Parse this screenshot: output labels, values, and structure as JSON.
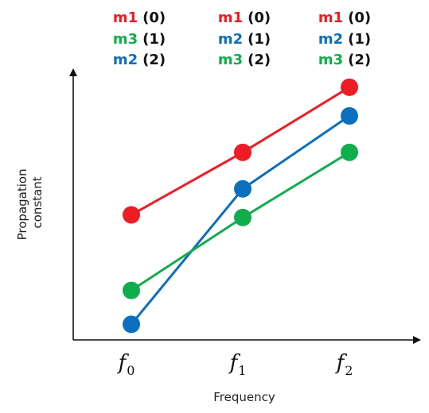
{
  "colors": {
    "m1": "#ee1c24",
    "m2": "#0b6fbd",
    "m3": "#10ad4c",
    "axis": "#111111"
  },
  "chart_data": {
    "type": "line",
    "xlabel": "Frequency",
    "ylabel_lines": [
      "Propagation",
      "constant"
    ],
    "categories": [
      {
        "base": "f",
        "sub": "0"
      },
      {
        "base": "f",
        "sub": "1"
      },
      {
        "base": "f",
        "sub": "2"
      }
    ],
    "ylim": [
      0,
      100
    ],
    "grid": false,
    "series": [
      {
        "name": "m1",
        "key": "m1",
        "values": [
          48,
          72,
          97
        ]
      },
      {
        "name": "m2",
        "key": "m2",
        "values": [
          6,
          58,
          86
        ]
      },
      {
        "name": "m3",
        "key": "m3",
        "values": [
          19,
          47,
          72
        ]
      }
    ],
    "mode_order_labels": [
      [
        {
          "mode": "m1",
          "key": "m1",
          "order": "(0)"
        },
        {
          "mode": "m3",
          "key": "m3",
          "order": "(1)"
        },
        {
          "mode": "m2",
          "key": "m2",
          "order": "(2)"
        }
      ],
      [
        {
          "mode": "m1",
          "key": "m1",
          "order": "(0)"
        },
        {
          "mode": "m2",
          "key": "m2",
          "order": "(1)"
        },
        {
          "mode": "m3",
          "key": "m3",
          "order": "(2)"
        }
      ],
      [
        {
          "mode": "m1",
          "key": "m1",
          "order": "(0)"
        },
        {
          "mode": "m2",
          "key": "m2",
          "order": "(1)"
        },
        {
          "mode": "m3",
          "key": "m3",
          "order": "(2)"
        }
      ]
    ]
  }
}
